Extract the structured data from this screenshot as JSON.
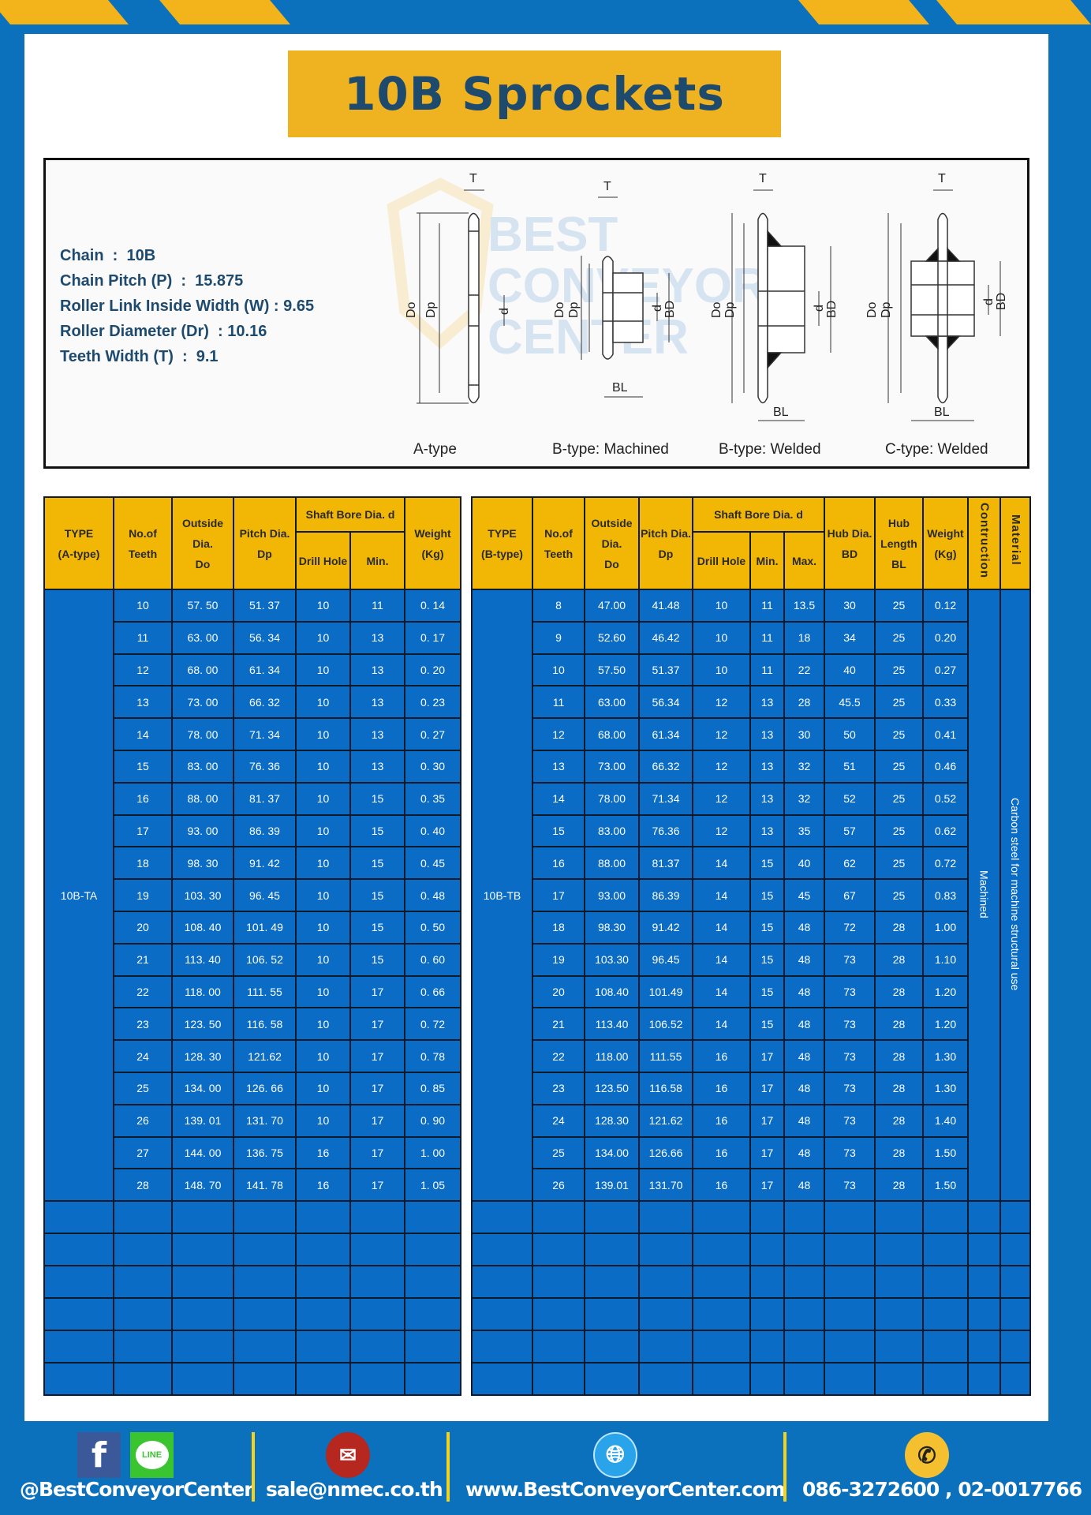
{
  "title": "10B Sprockets",
  "colors": {
    "background": "#0b71bd",
    "accent_yellow": "#f2b705",
    "cell_blue": "#0a6cc4",
    "title_text": "#1e4a6e"
  },
  "specs": [
    "Chain  :  10B",
    "Chain Pitch (P)  :  15.875",
    "Roller Link Inside Width (W) : 9.65",
    "Roller Diameter (Dr)  : 10.16",
    "Teeth Width (T)  :  9.1"
  ],
  "diagram": {
    "captions": [
      "A-type",
      "B-type: Machined",
      "B-type: Welded",
      "C-type: Welded"
    ],
    "labels": {
      "T": "T",
      "Do": "Do",
      "Dp": "Dp",
      "d": "d",
      "BD": "BD",
      "BL": "BL"
    },
    "watermark": [
      "BEST",
      "CONVEYOR",
      "CENTER"
    ]
  },
  "table_a": {
    "headers": {
      "type": [
        "TYPE",
        "(A-type)"
      ],
      "teeth": [
        "No.of",
        "Teeth"
      ],
      "outside": [
        "Outside",
        "Dia.",
        "Do"
      ],
      "pitch": [
        "Pitch Dia.",
        "Dp"
      ],
      "bore": "Shaft Bore Dia. d",
      "drill": "Drill Hole",
      "min": "Min.",
      "weight": [
        "Weight",
        "(Kg)"
      ]
    },
    "type": "10B-TA",
    "rows": [
      [
        "10",
        "57. 50",
        "51. 37",
        "10",
        "11",
        "0. 14"
      ],
      [
        "11",
        "63. 00",
        "56. 34",
        "10",
        "13",
        "0. 17"
      ],
      [
        "12",
        "68. 00",
        "61. 34",
        "10",
        "13",
        "0. 20"
      ],
      [
        "13",
        "73. 00",
        "66. 32",
        "10",
        "13",
        "0. 23"
      ],
      [
        "14",
        "78. 00",
        "71. 34",
        "10",
        "13",
        "0. 27"
      ],
      [
        "15",
        "83. 00",
        "76. 36",
        "10",
        "13",
        "0. 30"
      ],
      [
        "16",
        "88. 00",
        "81. 37",
        "10",
        "15",
        "0. 35"
      ],
      [
        "17",
        "93. 00",
        "86. 39",
        "10",
        "15",
        "0. 40"
      ],
      [
        "18",
        "98. 30",
        "91. 42",
        "10",
        "15",
        "0. 45"
      ],
      [
        "19",
        "103. 30",
        "96. 45",
        "10",
        "15",
        "0. 48"
      ],
      [
        "20",
        "108. 40",
        "101. 49",
        "10",
        "15",
        "0. 50"
      ],
      [
        "21",
        "113. 40",
        "106. 52",
        "10",
        "15",
        "0. 60"
      ],
      [
        "22",
        "118. 00",
        "111. 55",
        "10",
        "17",
        "0. 66"
      ],
      [
        "23",
        "123. 50",
        "116. 58",
        "10",
        "17",
        "0. 72"
      ],
      [
        "24",
        "128. 30",
        "121.62",
        "10",
        "17",
        "0. 78"
      ],
      [
        "25",
        "134. 00",
        "126. 66",
        "10",
        "17",
        "0. 85"
      ],
      [
        "26",
        "139. 01",
        "131. 70",
        "10",
        "17",
        "0. 90"
      ],
      [
        "27",
        "144. 00",
        "136. 75",
        "16",
        "17",
        "1. 00"
      ],
      [
        "28",
        "148. 70",
        "141. 78",
        "16",
        "17",
        "1. 05"
      ]
    ]
  },
  "table_b": {
    "headers": {
      "type": [
        "TYPE",
        "(B-type)"
      ],
      "teeth": [
        "No.of",
        "Teeth"
      ],
      "outside": [
        "Outside",
        "Dia.",
        "Do"
      ],
      "pitch": [
        "Pitch Dia.",
        "Dp"
      ],
      "bore": "Shaft Bore Dia. d",
      "drill": "Drill Hole",
      "min": "Min.",
      "max": "Max.",
      "hub_dia": [
        "Hub Dia.",
        "BD"
      ],
      "hub_len": [
        "Hub",
        "Length",
        "BL"
      ],
      "weight": [
        "Weight",
        "(Kg)"
      ],
      "construction": "Contruction",
      "material": "Material"
    },
    "type": "10B-TB",
    "construction": "Machined",
    "material": "Carbon steel  for machine structural use",
    "rows": [
      [
        "8",
        "47.00",
        "41.48",
        "10",
        "11",
        "13.5",
        "30",
        "25",
        "0.12"
      ],
      [
        "9",
        "52.60",
        "46.42",
        "10",
        "11",
        "18",
        "34",
        "25",
        "0.20"
      ],
      [
        "10",
        "57.50",
        "51.37",
        "10",
        "11",
        "22",
        "40",
        "25",
        "0.27"
      ],
      [
        "11",
        "63.00",
        "56.34",
        "12",
        "13",
        "28",
        "45.5",
        "25",
        "0.33"
      ],
      [
        "12",
        "68.00",
        "61.34",
        "12",
        "13",
        "30",
        "50",
        "25",
        "0.41"
      ],
      [
        "13",
        "73.00",
        "66.32",
        "12",
        "13",
        "32",
        "51",
        "25",
        "0.46"
      ],
      [
        "14",
        "78.00",
        "71.34",
        "12",
        "13",
        "32",
        "52",
        "25",
        "0.52"
      ],
      [
        "15",
        "83.00",
        "76.36",
        "12",
        "13",
        "35",
        "57",
        "25",
        "0.62"
      ],
      [
        "16",
        "88.00",
        "81.37",
        "14",
        "15",
        "40",
        "62",
        "25",
        "0.72"
      ],
      [
        "17",
        "93.00",
        "86.39",
        "14",
        "15",
        "45",
        "67",
        "25",
        "0.83"
      ],
      [
        "18",
        "98.30",
        "91.42",
        "14",
        "15",
        "48",
        "72",
        "28",
        "1.00"
      ],
      [
        "19",
        "103.30",
        "96.45",
        "14",
        "15",
        "48",
        "73",
        "28",
        "1.10"
      ],
      [
        "20",
        "108.40",
        "101.49",
        "14",
        "15",
        "48",
        "73",
        "28",
        "1.20"
      ],
      [
        "21",
        "113.40",
        "106.52",
        "14",
        "15",
        "48",
        "73",
        "28",
        "1.20"
      ],
      [
        "22",
        "118.00",
        "111.55",
        "16",
        "17",
        "48",
        "73",
        "28",
        "1.30"
      ],
      [
        "23",
        "123.50",
        "116.58",
        "16",
        "17",
        "48",
        "73",
        "28",
        "1.30"
      ],
      [
        "24",
        "128.30",
        "121.62",
        "16",
        "17",
        "48",
        "73",
        "28",
        "1.40"
      ],
      [
        "25",
        "134.00",
        "126.66",
        "16",
        "17",
        "48",
        "73",
        "28",
        "1.50"
      ],
      [
        "26",
        "139.01",
        "131.70",
        "16",
        "17",
        "48",
        "73",
        "28",
        "1.50"
      ]
    ]
  },
  "footer": {
    "social": "@BestConveyorCenter",
    "line_badge": "LINE",
    "facebook_badge": "f",
    "email": "sale@nmec.co.th",
    "website": "www.BestConveyorCenter.com",
    "phone": "086-3272600 , 02-0017766"
  }
}
